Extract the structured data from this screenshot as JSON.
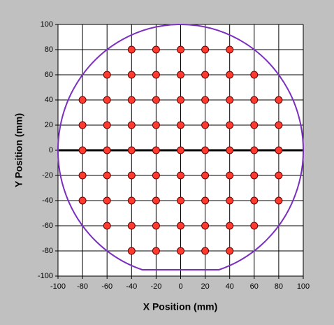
{
  "chart_data": {
    "type": "scatter",
    "xlabel": "X Position (mm)",
    "ylabel": "Y Position (mm)",
    "xlim": [
      -100,
      100
    ],
    "ylim": [
      -100,
      100
    ],
    "xticks": [
      -100,
      -80,
      -60,
      -40,
      -20,
      0,
      20,
      40,
      60,
      80,
      100
    ],
    "yticks": [
      -100,
      -80,
      -60,
      -40,
      -20,
      0,
      20,
      40,
      60,
      80,
      100
    ],
    "grid": true,
    "zero_line": true,
    "outline": {
      "radius": 100,
      "flat_y": -95,
      "color": "#7b2fc0"
    },
    "color": "#ff3b2f",
    "x": [
      -40,
      -20,
      0,
      20,
      40,
      -60,
      -40,
      -20,
      0,
      20,
      40,
      60,
      -80,
      -60,
      -40,
      -20,
      0,
      20,
      40,
      60,
      80,
      -80,
      -60,
      -40,
      -20,
      0,
      20,
      40,
      60,
      80,
      -80,
      -60,
      -40,
      -20,
      0,
      20,
      40,
      60,
      80,
      -80,
      -60,
      -40,
      -20,
      0,
      20,
      40,
      60,
      80,
      -80,
      -60,
      -40,
      -20,
      0,
      20,
      40,
      60,
      80,
      -60,
      -40,
      -20,
      0,
      20,
      40,
      60,
      -40,
      -20,
      0,
      20,
      40
    ],
    "y": [
      80,
      80,
      80,
      80,
      80,
      60,
      60,
      60,
      60,
      60,
      60,
      60,
      40,
      40,
      40,
      40,
      40,
      40,
      40,
      40,
      40,
      20,
      20,
      20,
      20,
      20,
      20,
      20,
      20,
      20,
      0,
      0,
      0,
      0,
      0,
      0,
      0,
      0,
      0,
      -20,
      -20,
      -20,
      -20,
      -20,
      -20,
      -20,
      -20,
      -20,
      -40,
      -40,
      -40,
      -40,
      -40,
      -40,
      -40,
      -40,
      -40,
      -60,
      -60,
      -60,
      -60,
      -60,
      -60,
      -60,
      -80,
      -80,
      -80,
      -80,
      -80
    ]
  }
}
